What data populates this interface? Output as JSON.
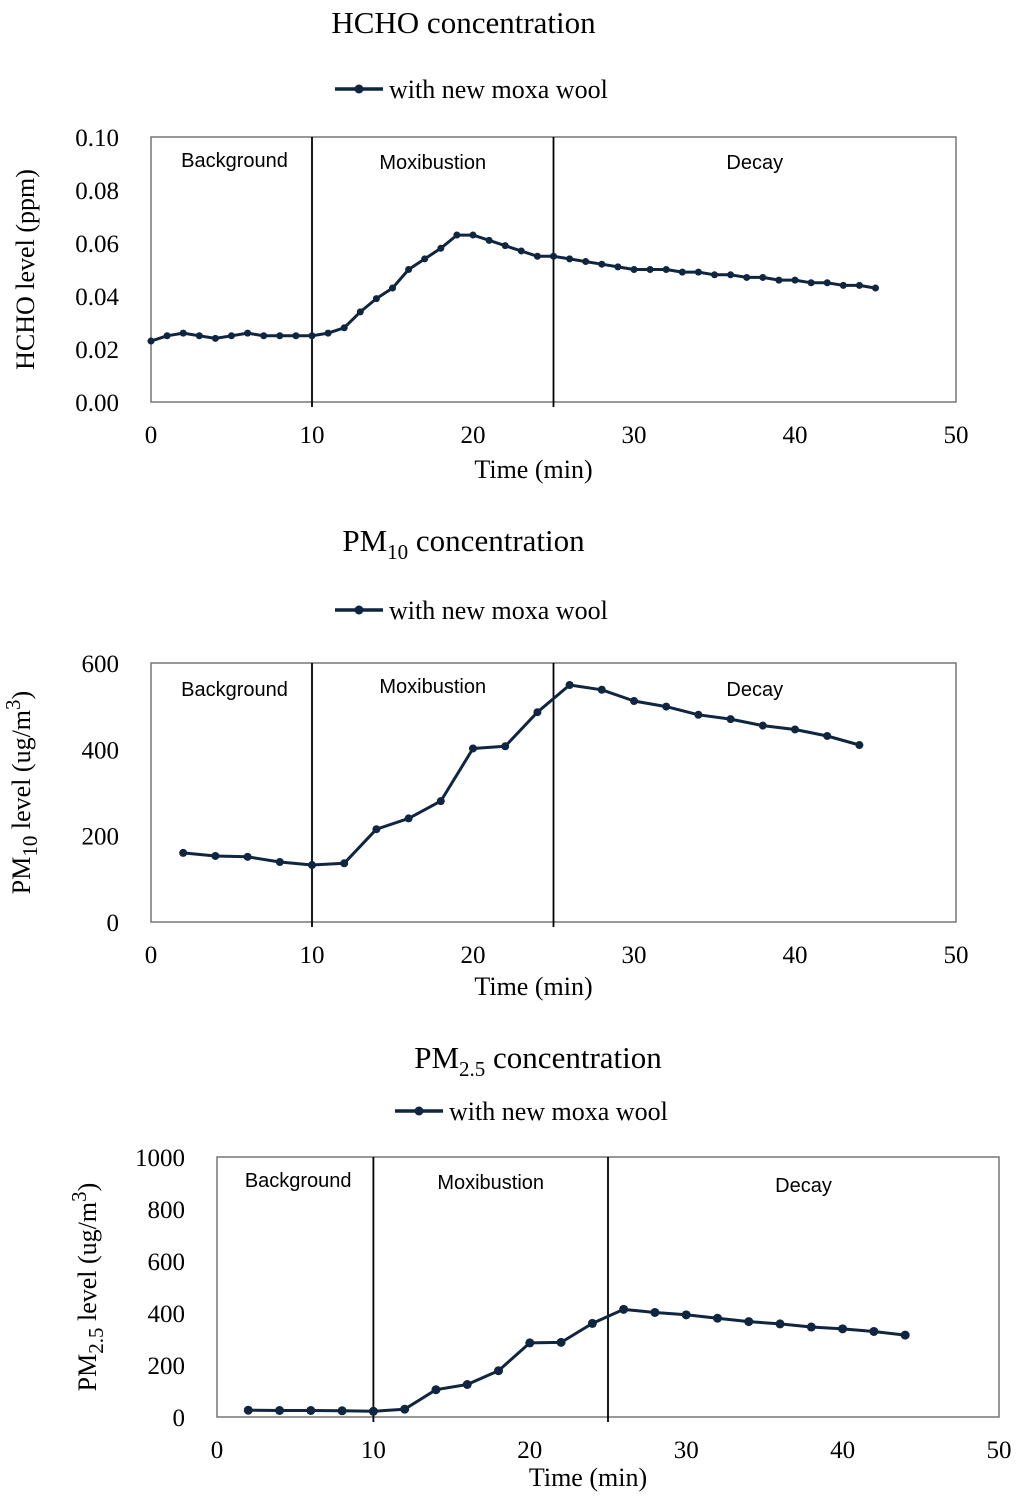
{
  "chart_data": [
    {
      "type": "line",
      "title": {
        "main": "HCHO concentration",
        "sub": ""
      },
      "xlabel": "Time (min)",
      "ylabel": {
        "main": "HCHO level (ppm)",
        "sub": "",
        "sup": "",
        "tail": ""
      },
      "xlim": [
        0,
        50
      ],
      "ylim": [
        0,
        0.1
      ],
      "xticks": [
        "0",
        "10",
        "20",
        "30",
        "40",
        "50"
      ],
      "yticks": [
        "0.00",
        "0.02",
        "0.04",
        "0.06",
        "0.08",
        "0.10"
      ],
      "legend": {
        "position": "top-center",
        "label": "with new moxa wool"
      },
      "phases": [
        {
          "label": "Background",
          "x": 5
        },
        {
          "label": "Moxibustion",
          "x": 17.5
        },
        {
          "label": "Decay",
          "x": 37.5
        }
      ],
      "phase_boundaries": [
        10,
        25
      ],
      "series": [
        {
          "name": "with new moxa wool",
          "color": "#0f2540",
          "x": [
            0,
            1,
            2,
            3,
            4,
            5,
            6,
            7,
            8,
            9,
            10,
            11,
            12,
            13,
            14,
            15,
            16,
            17,
            18,
            19,
            20,
            21,
            22,
            23,
            24,
            25,
            26,
            27,
            28,
            29,
            30,
            31,
            32,
            33,
            34,
            35,
            36,
            37,
            38,
            39,
            40,
            41,
            42,
            43,
            44,
            45
          ],
          "y": [
            0.023,
            0.025,
            0.026,
            0.025,
            0.024,
            0.025,
            0.026,
            0.025,
            0.025,
            0.025,
            0.025,
            0.026,
            0.028,
            0.034,
            0.039,
            0.043,
            0.05,
            0.054,
            0.058,
            0.063,
            0.063,
            0.061,
            0.059,
            0.057,
            0.055,
            0.055,
            0.054,
            0.053,
            0.052,
            0.051,
            0.05,
            0.05,
            0.05,
            0.049,
            0.049,
            0.048,
            0.048,
            0.047,
            0.047,
            0.046,
            0.046,
            0.045,
            0.045,
            0.044,
            0.044,
            0.043
          ]
        }
      ]
    },
    {
      "type": "line",
      "title": {
        "main": "PM",
        "sub": "10",
        "tail": " concentration"
      },
      "xlabel": "Time (min)",
      "ylabel": {
        "main": "PM",
        "sub": "10",
        "mid": " level (ug/m",
        "sup": "3",
        "tail": ")"
      },
      "xlim": [
        0,
        50
      ],
      "ylim": [
        0,
        600
      ],
      "xticks": [
        "0",
        "10",
        "20",
        "30",
        "40",
        "50"
      ],
      "yticks": [
        "0",
        "200",
        "400",
        "600"
      ],
      "legend": {
        "position": "top-center",
        "label": "with new moxa wool"
      },
      "phases": [
        {
          "label": "Background",
          "x": 5
        },
        {
          "label": "Moxibustion",
          "x": 17.5
        },
        {
          "label": "Decay",
          "x": 37.5
        }
      ],
      "phase_boundaries": [
        10,
        25
      ],
      "series": [
        {
          "name": "with new moxa wool",
          "color": "#0f2540",
          "x": [
            2,
            4,
            6,
            8,
            10,
            12,
            14,
            16,
            18,
            20,
            22,
            24,
            26,
            28,
            30,
            32,
            34,
            36,
            38,
            40,
            42,
            44
          ],
          "y": [
            160,
            153,
            151,
            139,
            132,
            136,
            215,
            240,
            280,
            402,
            407,
            486,
            549,
            538,
            512,
            499,
            480,
            470,
            455,
            446,
            431,
            410
          ]
        }
      ]
    },
    {
      "type": "line",
      "title": {
        "main": "PM",
        "sub": "2.5",
        "tail": " concentration"
      },
      "xlabel": "Time (min)",
      "ylabel": {
        "main": "PM",
        "sub": "2.5",
        "mid": " level (ug/m",
        "sup": "3",
        "tail": ")"
      },
      "xlim": [
        0,
        50
      ],
      "ylim": [
        0,
        1000
      ],
      "xticks": [
        "0",
        "10",
        "20",
        "30",
        "40",
        "50"
      ],
      "yticks": [
        "0",
        "200",
        "400",
        "600",
        "800",
        "1000"
      ],
      "legend": {
        "position": "top-center",
        "label": "with new moxa wool"
      },
      "phases": [
        {
          "label": "Background",
          "x": 5
        },
        {
          "label": "Moxibustion",
          "x": 17.5
        },
        {
          "label": "Decay",
          "x": 37.5
        }
      ],
      "phase_boundaries": [
        10,
        25
      ],
      "series": [
        {
          "name": "with new moxa wool",
          "color": "#0f2540",
          "x": [
            2,
            4,
            6,
            8,
            10,
            12,
            14,
            16,
            18,
            20,
            22,
            24,
            26,
            28,
            30,
            32,
            34,
            36,
            38,
            40,
            42,
            44
          ],
          "y": [
            26,
            25,
            25,
            24,
            22,
            30,
            105,
            125,
            178,
            285,
            287,
            360,
            414,
            402,
            393,
            380,
            367,
            358,
            346,
            339,
            329,
            315
          ]
        }
      ]
    }
  ]
}
